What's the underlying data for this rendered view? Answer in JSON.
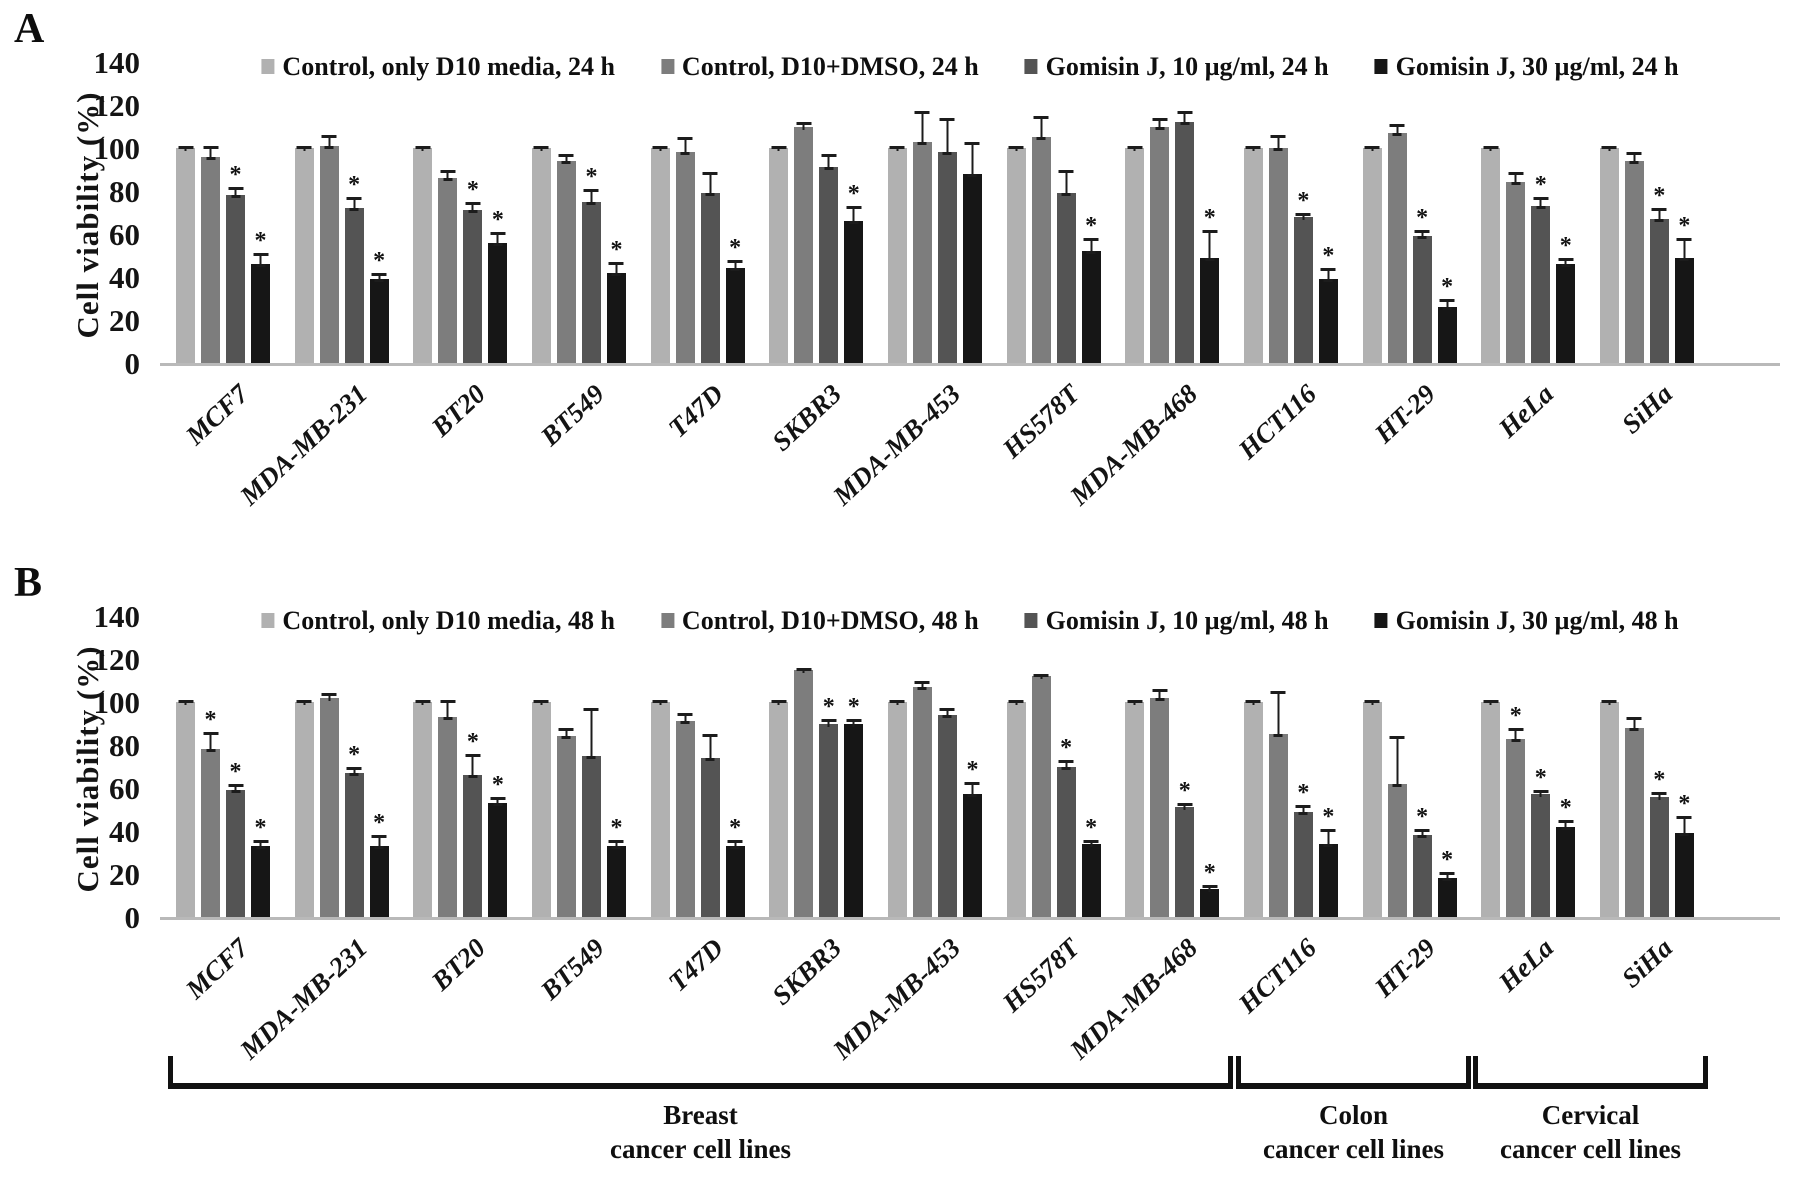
{
  "figure_title": "Gomisin J cell viability figure",
  "accent_colors": {
    "series_light": "#b1b1b1",
    "series_medium": "#7d7d7d",
    "series_dark": "#545454",
    "series_black": "#161616",
    "baseline": "#b9b9b9",
    "text": "#111111"
  },
  "chart_data": [
    {
      "type": "bar",
      "panel_label": "A",
      "title": "",
      "xlabel": "",
      "ylabel": "Cell viability (%)",
      "ylim": [
        0,
        140
      ],
      "yticks": [
        0,
        20,
        40,
        60,
        80,
        100,
        120,
        140
      ],
      "grid": false,
      "legend_position": "top",
      "categories": [
        "MCF7",
        "MDA-MB-231",
        "BT20",
        "BT549",
        "T47D",
        "SKBR3",
        "MDA-MB-453",
        "HS578T",
        "MDA-MB-468",
        "HCT116",
        "HT-29",
        "HeLa",
        "SiHa"
      ],
      "series": [
        {
          "name": "Control, only D10 media, 24 h",
          "color": "#b1b1b1",
          "values": [
            100,
            100,
            100,
            100,
            100,
            100,
            100,
            100,
            100,
            100,
            100,
            100,
            100
          ],
          "errors": [
            1,
            1,
            1,
            1,
            1,
            1,
            1,
            1,
            1,
            1,
            1,
            1,
            1
          ],
          "sig": [
            0,
            0,
            0,
            0,
            0,
            0,
            0,
            0,
            0,
            0,
            0,
            0,
            0
          ]
        },
        {
          "name": "Control, D10+DMSO, 24 h",
          "color": "#7d7d7d",
          "values": [
            96,
            101,
            86,
            94,
            98,
            110,
            103,
            105,
            110,
            100,
            107,
            84,
            94
          ],
          "errors": [
            5,
            5,
            4,
            3,
            7,
            2,
            14,
            10,
            4,
            6,
            4,
            5,
            4
          ],
          "sig": [
            0,
            0,
            0,
            0,
            0,
            0,
            0,
            0,
            0,
            0,
            0,
            0,
            0
          ]
        },
        {
          "name": "Gomisin J, 10 µg/ml, 24 h",
          "color": "#545454",
          "values": [
            78,
            72,
            71,
            75,
            79,
            91,
            98,
            79,
            112,
            68,
            59,
            73,
            67
          ],
          "errors": [
            4,
            5,
            4,
            6,
            10,
            6,
            16,
            11,
            5,
            2,
            3,
            4,
            5
          ],
          "sig": [
            1,
            1,
            1,
            1,
            0,
            0,
            0,
            0,
            0,
            1,
            1,
            1,
            1
          ]
        },
        {
          "name": "Gomisin J, 30 µg/ml, 24 h",
          "color": "#161616",
          "values": [
            46,
            39,
            56,
            42,
            44,
            66,
            88,
            52,
            49,
            39,
            26,
            46,
            49
          ],
          "errors": [
            5,
            3,
            5,
            5,
            4,
            7,
            15,
            6,
            13,
            5,
            4,
            3,
            9
          ],
          "sig": [
            1,
            1,
            1,
            1,
            1,
            1,
            0,
            1,
            1,
            1,
            1,
            1,
            1
          ]
        }
      ]
    },
    {
      "type": "bar",
      "panel_label": "B",
      "title": "",
      "xlabel": "",
      "ylabel": "Cell viability (%)",
      "ylim": [
        0,
        140
      ],
      "yticks": [
        0,
        20,
        40,
        60,
        80,
        100,
        120,
        140
      ],
      "grid": false,
      "legend_position": "top",
      "categories": [
        "MCF7",
        "MDA-MB-231",
        "BT20",
        "BT549",
        "T47D",
        "SKBR3",
        "MDA-MB-453",
        "HS578T",
        "MDA-MB-468",
        "HCT116",
        "HT-29",
        "HeLa",
        "SiHa"
      ],
      "series": [
        {
          "name": "Control, only D10 media, 48 h",
          "color": "#b1b1b1",
          "values": [
            100,
            100,
            100,
            100,
            100,
            100,
            100,
            100,
            100,
            100,
            100,
            100,
            100
          ],
          "errors": [
            1,
            1,
            1,
            1,
            1,
            1,
            1,
            1,
            1,
            1,
            1,
            1,
            1
          ],
          "sig": [
            0,
            0,
            0,
            0,
            0,
            0,
            0,
            0,
            0,
            0,
            0,
            0,
            0
          ]
        },
        {
          "name": "Control, D10+DMSO, 48 h",
          "color": "#7d7d7d",
          "values": [
            78,
            102,
            93,
            84,
            91,
            115,
            107,
            112,
            102,
            85,
            62,
            83,
            88
          ],
          "errors": [
            8,
            2,
            8,
            4,
            4,
            1,
            3,
            1,
            4,
            20,
            22,
            5,
            5
          ],
          "sig": [
            1,
            0,
            0,
            0,
            0,
            0,
            0,
            0,
            0,
            0,
            0,
            1,
            0
          ]
        },
        {
          "name": "Gomisin J, 10 µg/ml, 48 h",
          "color": "#545454",
          "values": [
            59,
            67,
            66,
            75,
            74,
            90,
            94,
            70,
            51,
            49,
            38,
            57,
            56
          ],
          "errors": [
            3,
            3,
            10,
            22,
            11,
            2,
            3,
            3,
            2,
            3,
            3,
            2,
            2
          ],
          "sig": [
            1,
            1,
            1,
            0,
            0,
            1,
            0,
            1,
            1,
            1,
            1,
            1,
            1
          ]
        },
        {
          "name": "Gomisin J, 30 µg/ml, 48 h",
          "color": "#161616",
          "values": [
            33,
            33,
            53,
            33,
            33,
            90,
            57,
            34,
            13,
            34,
            18,
            42,
            39
          ],
          "errors": [
            3,
            5,
            3,
            3,
            3,
            2,
            6,
            2,
            2,
            7,
            3,
            3,
            8
          ],
          "sig": [
            1,
            1,
            1,
            1,
            1,
            1,
            1,
            1,
            1,
            1,
            1,
            1,
            1
          ]
        }
      ],
      "category_brackets": [
        {
          "line1": "Breast",
          "line2": "cancer cell lines",
          "from": 0,
          "to": 8
        },
        {
          "line1": "Colon",
          "line2": "cancer cell lines",
          "from": 9,
          "to": 10
        },
        {
          "line1": "Cervical",
          "line2": "cancer cell lines",
          "from": 11,
          "to": 12
        }
      ]
    }
  ]
}
